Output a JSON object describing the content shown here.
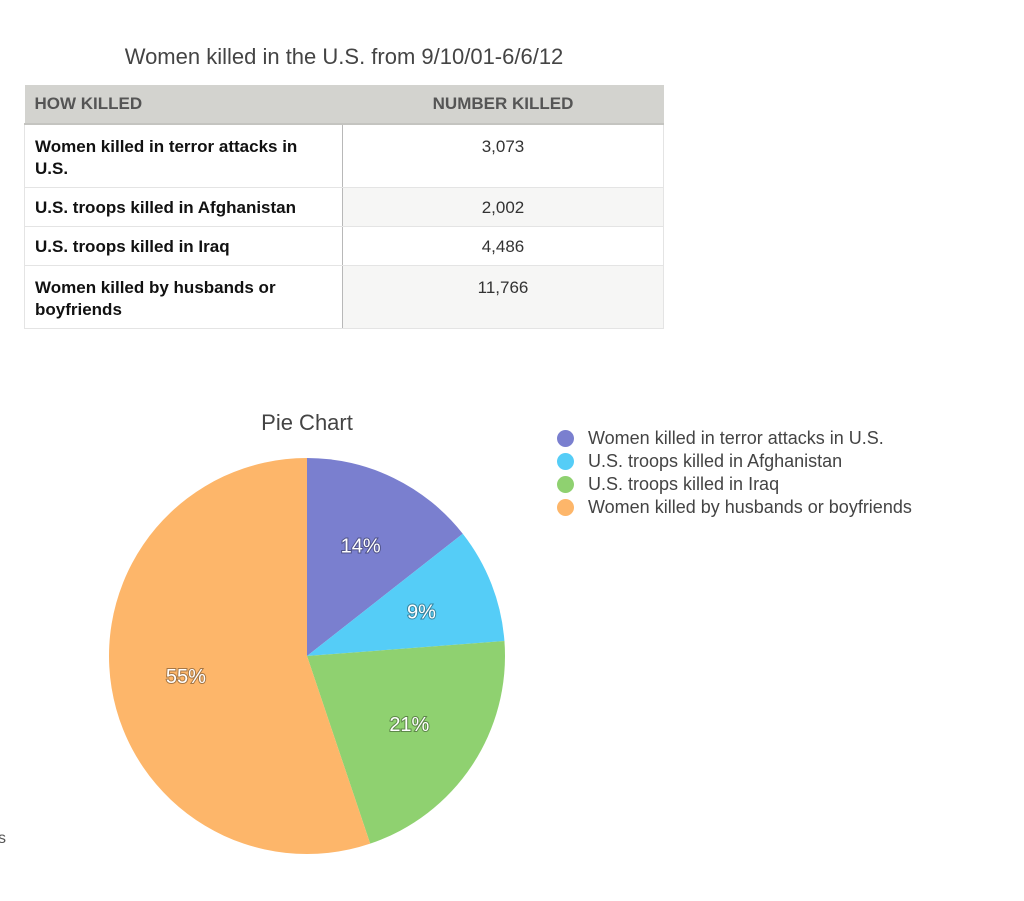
{
  "table": {
    "title": "Women killed in the U.S. from 9/10/01-6/6/12",
    "header_label": "HOW KILLED",
    "header_value": "NUMBER KILLED",
    "rows": [
      {
        "label": "Women killed in terror attacks in U.S.",
        "value": "3,073"
      },
      {
        "label": "U.S. troops killed in Afghanistan",
        "value": "2,002"
      },
      {
        "label": "U.S. troops killed in Iraq",
        "value": "4,486"
      },
      {
        "label": "Women killed by husbands or boyfriends",
        "value": "11,766"
      }
    ]
  },
  "chart_data": {
    "type": "pie",
    "title": "Pie Chart",
    "legend_position": "right",
    "categories": [
      "Women killed in terror attacks in U.S.",
      "U.S. troops killed in Afghanistan",
      "U.S. troops killed in Iraq",
      "Women killed by husbands or boyfriends"
    ],
    "values": [
      3073,
      2002,
      4486,
      11766
    ],
    "percent_labels": [
      "14%",
      "9%",
      "21%",
      "55%"
    ],
    "colors": [
      "#7a7fcf",
      "#55cdf7",
      "#8fd170",
      "#fdb66a"
    ]
  },
  "stray_text": "s"
}
